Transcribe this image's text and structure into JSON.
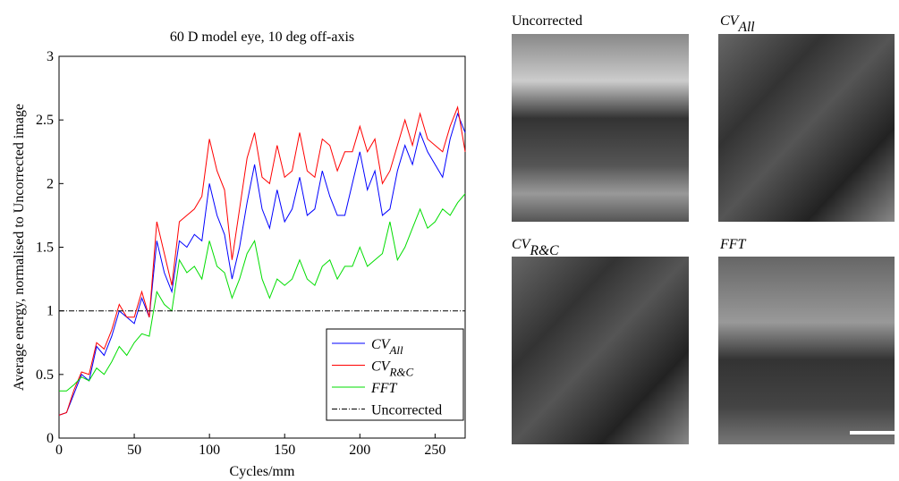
{
  "chart_data": {
    "type": "line",
    "title": "60 D model eye, 10 deg off-axis",
    "xlabel": "Cycles/mm",
    "ylabel": "Average energy, normalised to Uncorrected image",
    "x": [
      0,
      5,
      10,
      15,
      20,
      25,
      30,
      35,
      40,
      45,
      50,
      55,
      60,
      65,
      70,
      75,
      80,
      85,
      90,
      95,
      100,
      105,
      110,
      115,
      120,
      125,
      130,
      135,
      140,
      145,
      150,
      155,
      160,
      165,
      170,
      175,
      180,
      185,
      190,
      195,
      200,
      205,
      210,
      215,
      220,
      225,
      230,
      235,
      240,
      245,
      250,
      255,
      260,
      265,
      270
    ],
    "series": [
      {
        "name": "CV",
        "subscript": "All",
        "color": "#0000ff",
        "values": [
          0.18,
          0.2,
          0.35,
          0.5,
          0.45,
          0.72,
          0.65,
          0.8,
          1.0,
          0.95,
          0.9,
          1.1,
          0.95,
          1.55,
          1.3,
          1.15,
          1.55,
          1.5,
          1.6,
          1.55,
          2.0,
          1.75,
          1.6,
          1.25,
          1.5,
          1.85,
          2.15,
          1.8,
          1.65,
          1.95,
          1.7,
          1.8,
          2.05,
          1.75,
          1.8,
          2.1,
          1.9,
          1.75,
          1.75,
          2.0,
          2.25,
          1.95,
          2.1,
          1.75,
          1.8,
          2.1,
          2.3,
          2.15,
          2.4,
          2.25,
          2.15,
          2.05,
          2.35,
          2.55,
          2.4
        ]
      },
      {
        "name": "CV",
        "subscript": "R&C",
        "color": "#ff0000",
        "values": [
          0.18,
          0.2,
          0.38,
          0.52,
          0.5,
          0.75,
          0.7,
          0.85,
          1.05,
          0.95,
          0.95,
          1.15,
          0.95,
          1.7,
          1.45,
          1.2,
          1.7,
          1.75,
          1.8,
          1.9,
          2.35,
          2.1,
          1.95,
          1.4,
          1.8,
          2.2,
          2.4,
          2.05,
          2.0,
          2.3,
          2.05,
          2.1,
          2.4,
          2.1,
          2.05,
          2.35,
          2.3,
          2.1,
          2.25,
          2.25,
          2.45,
          2.25,
          2.35,
          2.0,
          2.1,
          2.3,
          2.5,
          2.3,
          2.55,
          2.35,
          2.3,
          2.25,
          2.45,
          2.6,
          2.25
        ]
      },
      {
        "name": "FFT",
        "color": "#00dd00",
        "values": [
          0.37,
          0.37,
          0.42,
          0.48,
          0.45,
          0.55,
          0.5,
          0.6,
          0.72,
          0.65,
          0.75,
          0.82,
          0.8,
          1.15,
          1.05,
          1.0,
          1.4,
          1.3,
          1.35,
          1.25,
          1.55,
          1.35,
          1.3,
          1.1,
          1.25,
          1.45,
          1.55,
          1.25,
          1.1,
          1.25,
          1.2,
          1.25,
          1.4,
          1.25,
          1.2,
          1.35,
          1.4,
          1.25,
          1.35,
          1.35,
          1.5,
          1.35,
          1.4,
          1.45,
          1.7,
          1.4,
          1.5,
          1.65,
          1.8,
          1.65,
          1.7,
          1.8,
          1.75,
          1.85,
          1.92
        ]
      },
      {
        "name": "Uncorrected",
        "color": "#000000",
        "dash": true,
        "x": [
          0,
          270
        ],
        "values": [
          1,
          1
        ]
      }
    ],
    "xlim": [
      0,
      270
    ],
    "ylim": [
      0,
      3
    ],
    "xticks": [
      0,
      50,
      100,
      150,
      200,
      250
    ],
    "yticks": [
      0,
      0.5,
      1,
      1.5,
      2,
      2.5,
      3
    ],
    "legend": "lower right",
    "grid": false
  },
  "panels": [
    {
      "label": "Uncorrected"
    },
    {
      "label": "CV",
      "subscript": "All"
    },
    {
      "label": "CV",
      "subscript": "R&C"
    },
    {
      "label": "FFT"
    }
  ]
}
